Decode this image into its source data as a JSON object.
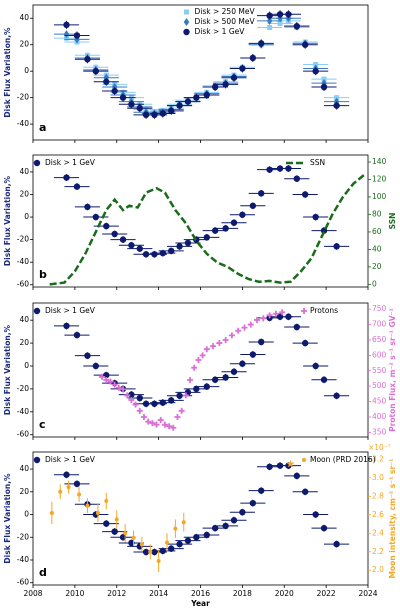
{
  "chart_data": [
    {
      "type": "scatter",
      "panel_label": "a",
      "ylabel": "Disk Flux Variation,%",
      "xlim": [
        2008,
        2024
      ],
      "xticks": [
        2008,
        2010,
        2012,
        2014,
        2016,
        2018,
        2020,
        2022,
        2024
      ],
      "ylim": [
        -52,
        50
      ],
      "yticks": [
        -40,
        -20,
        0,
        20,
        40
      ],
      "legend": "upper center",
      "series": [
        {
          "name": "Disk > 250 MeV",
          "color": "#87cefa",
          "marker": "square",
          "xerr": 0.6,
          "yerr": 2,
          "x": [
            2009.6,
            2010.1,
            2010.6,
            2011.0,
            2011.5,
            2011.9,
            2012.3,
            2012.7,
            2013.1,
            2013.4,
            2013.8,
            2014.2,
            2014.6,
            2015.0,
            2015.4,
            2015.8,
            2016.3,
            2016.7,
            2017.2,
            2017.6,
            2018.0,
            2018.5,
            2018.9,
            2019.3,
            2019.8,
            2020.2,
            2020.6,
            2021.0,
            2021.5,
            2021.9,
            2022.5
          ],
          "values": [
            25,
            22,
            12,
            3,
            -3,
            -10,
            -16,
            -20,
            -25,
            -29,
            -31,
            -30,
            -28,
            -25,
            -22,
            -20,
            -16,
            -11,
            -8,
            -3,
            3,
            10,
            20,
            33,
            36,
            38,
            33,
            22,
            5,
            -6,
            -20
          ]
        },
        {
          "name": "Disk > 500 MeV",
          "color": "#3a7bbf",
          "marker": "diamond",
          "xerr": 0.6,
          "yerr": 2,
          "x": [
            2009.6,
            2010.1,
            2010.6,
            2011.0,
            2011.5,
            2011.9,
            2012.3,
            2012.7,
            2013.1,
            2013.4,
            2013.8,
            2014.2,
            2014.6,
            2015.0,
            2015.4,
            2015.8,
            2016.3,
            2016.7,
            2017.2,
            2017.6,
            2018.0,
            2018.5,
            2018.9,
            2019.3,
            2019.8,
            2020.2,
            2020.6,
            2021.0,
            2021.5,
            2021.9,
            2022.5
          ],
          "values": [
            28,
            24,
            10,
            1,
            -5,
            -12,
            -18,
            -23,
            -27,
            -31,
            -32,
            -31,
            -29,
            -26,
            -23,
            -20,
            -17,
            -12,
            -9,
            -4,
            2,
            10,
            20,
            38,
            40,
            40,
            34,
            21,
            2,
            -9,
            -23
          ]
        },
        {
          "name": "Disk > 1 GeV",
          "color": "#0d1a6e",
          "marker": "circle",
          "xerr": 0.6,
          "yerr": 3,
          "x": [
            2009.6,
            2010.1,
            2010.6,
            2011.0,
            2011.5,
            2011.9,
            2012.3,
            2012.7,
            2013.1,
            2013.4,
            2013.8,
            2014.2,
            2014.6,
            2015.0,
            2015.4,
            2015.8,
            2016.3,
            2016.7,
            2017.2,
            2017.6,
            2018.0,
            2018.5,
            2018.9,
            2019.3,
            2019.8,
            2020.2,
            2020.6,
            2021.0,
            2021.5,
            2021.9,
            2022.5
          ],
          "values": [
            35,
            27,
            9,
            0,
            -8,
            -15,
            -20,
            -25,
            -28,
            -33,
            -33,
            -32,
            -30,
            -26,
            -23,
            -20,
            -18,
            -12,
            -10,
            -5,
            2,
            10,
            21,
            42,
            43,
            43,
            34,
            20,
            0,
            -12,
            -26
          ]
        }
      ]
    },
    {
      "type": "scatter",
      "panel_label": "b",
      "ylabel": "Disk Flux Variation,%",
      "y2label": "SSN",
      "xlim": [
        2008,
        2024
      ],
      "xticks": [
        2008,
        2010,
        2012,
        2014,
        2016,
        2018,
        2020,
        2022,
        2024
      ],
      "ylim": [
        -62,
        55
      ],
      "yticks": [
        -60,
        -40,
        -20,
        0,
        20,
        40
      ],
      "y2lim": [
        -3,
        148
      ],
      "y2ticks": [
        0,
        20,
        40,
        60,
        80,
        100,
        120,
        140
      ],
      "legend": "upper left",
      "legend2": "upper right",
      "series": [
        {
          "name": "Disk > 1 GeV",
          "color": "#0d1a6e",
          "marker": "circle",
          "xerr": 0.6,
          "yerr": 3,
          "x": [
            2009.6,
            2010.1,
            2010.6,
            2011.0,
            2011.5,
            2011.9,
            2012.3,
            2012.7,
            2013.1,
            2013.4,
            2013.8,
            2014.2,
            2014.6,
            2015.0,
            2015.4,
            2015.8,
            2016.3,
            2016.7,
            2017.2,
            2017.6,
            2018.0,
            2018.5,
            2018.9,
            2019.3,
            2019.8,
            2020.2,
            2020.6,
            2021.0,
            2021.5,
            2021.9,
            2022.5
          ],
          "values": [
            35,
            27,
            9,
            0,
            -8,
            -15,
            -20,
            -25,
            -28,
            -33,
            -33,
            -32,
            -30,
            -26,
            -23,
            -20,
            -18,
            -12,
            -10,
            -5,
            2,
            10,
            21,
            42,
            43,
            43,
            34,
            20,
            0,
            -12,
            -26
          ]
        },
        {
          "name": "SSN",
          "color": "#1a6b1a",
          "marker": "dashed-line",
          "axis": "y2",
          "x": [
            2008.8,
            2009.5,
            2010.0,
            2010.5,
            2011.0,
            2011.5,
            2011.9,
            2012.3,
            2012.6,
            2013.0,
            2013.4,
            2013.9,
            2014.3,
            2014.8,
            2015.3,
            2015.8,
            2016.3,
            2016.8,
            2017.3,
            2017.8,
            2018.3,
            2018.8,
            2019.3,
            2019.8,
            2020.3,
            2020.8,
            2021.3,
            2021.8,
            2022.3,
            2022.8,
            2023.3,
            2023.8
          ],
          "values": [
            0,
            2,
            15,
            35,
            60,
            85,
            97,
            85,
            90,
            88,
            105,
            110,
            105,
            85,
            70,
            50,
            35,
            25,
            20,
            12,
            6,
            3,
            4,
            2,
            3,
            15,
            30,
            55,
            80,
            100,
            115,
            125
          ]
        }
      ]
    },
    {
      "type": "scatter",
      "panel_label": "c",
      "ylabel": "Disk Flux Variation,%",
      "y2label": "Proton Flux, m⁻² s⁻¹ sr⁻¹ GV⁻¹",
      "xlim": [
        2008,
        2024
      ],
      "xticks": [
        2008,
        2010,
        2012,
        2014,
        2016,
        2018,
        2020,
        2022,
        2024
      ],
      "ylim": [
        -62,
        55
      ],
      "yticks": [
        -60,
        -40,
        -20,
        0,
        20,
        40
      ],
      "y2lim": [
        335,
        770
      ],
      "y2ticks": [
        350,
        400,
        450,
        500,
        550,
        600,
        650,
        700,
        750
      ],
      "legend": "upper left",
      "legend2": "upper right",
      "series": [
        {
          "name": "Disk > 1 GeV",
          "color": "#0d1a6e",
          "marker": "circle",
          "xerr": 0.6,
          "yerr": 3,
          "x": [
            2009.6,
            2010.1,
            2010.6,
            2011.0,
            2011.5,
            2011.9,
            2012.3,
            2012.7,
            2013.1,
            2013.4,
            2013.8,
            2014.2,
            2014.6,
            2015.0,
            2015.4,
            2015.8,
            2016.3,
            2016.7,
            2017.2,
            2017.6,
            2018.0,
            2018.5,
            2018.9,
            2019.3,
            2019.8,
            2020.2,
            2020.6,
            2021.0,
            2021.5,
            2021.9,
            2022.5
          ],
          "values": [
            35,
            27,
            9,
            0,
            -8,
            -15,
            -20,
            -25,
            -28,
            -33,
            -33,
            -32,
            -30,
            -26,
            -23,
            -20,
            -18,
            -12,
            -10,
            -5,
            2,
            10,
            21,
            42,
            43,
            43,
            34,
            20,
            0,
            -12,
            -26
          ]
        },
        {
          "name": "Protons",
          "color": "#da70d6",
          "marker": "plus",
          "axis": "y2",
          "x": [
            2011.3,
            2011.5,
            2011.7,
            2011.9,
            2012.1,
            2012.3,
            2012.5,
            2012.7,
            2012.9,
            2013.1,
            2013.3,
            2013.5,
            2013.7,
            2013.9,
            2014.1,
            2014.3,
            2014.5,
            2014.7,
            2014.9,
            2015.1,
            2015.3,
            2015.5,
            2015.7,
            2015.9,
            2016.1,
            2016.3,
            2016.6,
            2016.9,
            2017.2,
            2017.5,
            2017.8,
            2018.1,
            2018.4,
            2018.7,
            2019.0,
            2019.3,
            2019.6,
            2019.9
          ],
          "values": [
            530,
            520,
            515,
            505,
            495,
            490,
            470,
            455,
            440,
            420,
            400,
            385,
            380,
            375,
            390,
            375,
            370,
            365,
            400,
            420,
            470,
            520,
            560,
            585,
            600,
            620,
            630,
            640,
            650,
            665,
            680,
            690,
            700,
            715,
            720,
            730,
            735,
            740
          ]
        }
      ]
    },
    {
      "type": "scatter",
      "panel_label": "d",
      "ylabel": "Disk Flux Variation,%",
      "y2label": "Moon intensity, cm⁻² s⁻¹ sr⁻¹",
      "y2_offset_label": "×10⁻⁷",
      "xlabel": "Year",
      "xlim": [
        2008,
        2024
      ],
      "xticks": [
        2008,
        2010,
        2012,
        2014,
        2016,
        2018,
        2020,
        2022,
        2024
      ],
      "ylim": [
        -62,
        55
      ],
      "yticks": [
        -60,
        -40,
        -20,
        0,
        20,
        40
      ],
      "y2lim": [
        1.84,
        3.28
      ],
      "y2ticks": [
        {
          "value": 2,
          "label": "2.0"
        },
        2.2,
        2.4,
        2.6,
        2.8,
        {
          "value": 3,
          "label": "3.0"
        },
        3.2
      ],
      "legend": "upper left",
      "legend2": "upper right",
      "series": [
        {
          "name": "Disk > 1 GeV",
          "color": "#0d1a6e",
          "marker": "circle",
          "xerr": 0.6,
          "yerr": 3,
          "x": [
            2009.6,
            2010.1,
            2010.6,
            2011.0,
            2011.5,
            2011.9,
            2012.3,
            2012.7,
            2013.1,
            2013.4,
            2013.8,
            2014.2,
            2014.6,
            2015.0,
            2015.4,
            2015.8,
            2016.3,
            2016.7,
            2017.2,
            2017.6,
            2018.0,
            2018.5,
            2018.9,
            2019.3,
            2019.8,
            2020.2,
            2020.6,
            2021.0,
            2021.5,
            2021.9,
            2022.5
          ],
          "values": [
            35,
            27,
            9,
            0,
            -8,
            -15,
            -20,
            -25,
            -28,
            -33,
            -33,
            -32,
            -30,
            -26,
            -23,
            -20,
            -18,
            -12,
            -10,
            -5,
            2,
            10,
            21,
            42,
            43,
            43,
            34,
            20,
            0,
            -12,
            -26
          ]
        },
        {
          "name": "Moon (PRD 2016)",
          "color": "#f5a623",
          "marker": "circle-small",
          "axis": "y2",
          "x": [
            2008.9,
            2009.3,
            2009.7,
            2010.2,
            2010.6,
            2011.1,
            2011.5,
            2012.0,
            2012.4,
            2012.8,
            2013.2,
            2013.6,
            2014.0,
            2014.4,
            2014.8,
            2015.2
          ],
          "values": [
            2.62,
            2.85,
            2.9,
            2.82,
            2.7,
            2.62,
            2.75,
            2.55,
            2.4,
            2.35,
            2.28,
            2.2,
            2.1,
            2.3,
            2.45,
            2.52
          ],
          "yerr": [
            0.12,
            0.08,
            0.07,
            0.08,
            0.08,
            0.1,
            0.09,
            0.1,
            0.1,
            0.08,
            0.08,
            0.08,
            0.12,
            0.1,
            0.1,
            0.1
          ]
        },
        {
          "color": "#f5a623",
          "marker": "star",
          "axis": "y2",
          "x": [
            2020.3
          ],
          "values": [
            3.15
          ]
        }
      ]
    }
  ]
}
